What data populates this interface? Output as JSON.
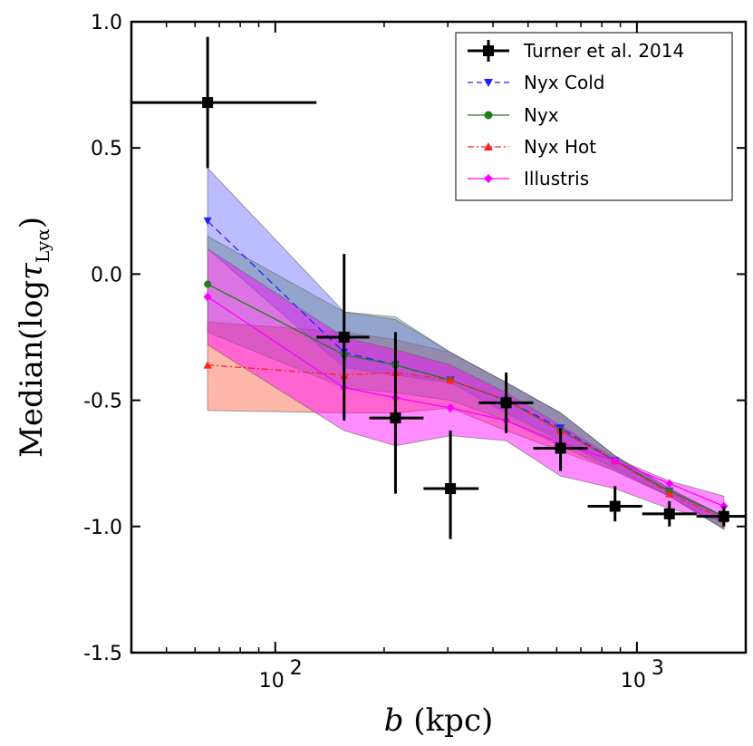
{
  "chart_data": {
    "type": "line",
    "xscale": "log",
    "xlim": [
      40,
      2000
    ],
    "ylim": [
      -1.5,
      1.0
    ],
    "xlabel": {
      "italic": "b",
      "rest": " (kpc)"
    },
    "ylabel": {
      "prefix": "Median(log",
      "tau": "τ",
      "sub": "Lyα",
      "suffix": ")"
    },
    "yticks": [
      {
        "value": 1.0,
        "label": "1.0"
      },
      {
        "value": 0.5,
        "label": "0.5"
      },
      {
        "value": 0.0,
        "label": "0.0"
      },
      {
        "value": -0.5,
        "label": "-0.5"
      },
      {
        "value": -1.0,
        "label": "-1.0"
      },
      {
        "value": -1.5,
        "label": "-1.5"
      }
    ],
    "xticks": [
      {
        "value": 100,
        "base": "10",
        "exp": "2"
      },
      {
        "value": 1000,
        "base": "10",
        "exp": "3"
      }
    ],
    "x": [
      65,
      155,
      215,
      305,
      435,
      615,
      870,
      1230,
      1740
    ],
    "bands": [
      {
        "name": "Nyx Hot band",
        "color": "#ff6040",
        "opacity": 0.45,
        "upper": [
          -0.19,
          -0.23,
          -0.26,
          -0.31,
          -0.43,
          -0.55,
          -0.72,
          -0.85,
          -0.96
        ],
        "lower": [
          -0.54,
          -0.55,
          -0.55,
          -0.53,
          -0.62,
          -0.7,
          -0.78,
          -0.88,
          -1.01
        ]
      },
      {
        "name": "Nyx Cold band",
        "color": "#6a6aff",
        "opacity": 0.45,
        "upper": [
          0.42,
          -0.15,
          -0.18,
          -0.31,
          -0.43,
          -0.55,
          -0.72,
          -0.85,
          -0.96
        ],
        "lower": [
          0.1,
          -0.37,
          -0.4,
          -0.43,
          -0.55,
          -0.66,
          -0.77,
          -0.88,
          -1.01
        ]
      },
      {
        "name": "Nyx band",
        "color": "#4a7a70",
        "opacity": 0.35,
        "upper": [
          0.15,
          -0.15,
          -0.17,
          -0.31,
          -0.43,
          -0.55,
          -0.72,
          -0.85,
          -0.96
        ],
        "lower": [
          -0.23,
          -0.45,
          -0.47,
          -0.5,
          -0.58,
          -0.68,
          -0.78,
          -0.88,
          -1.01
        ]
      },
      {
        "name": "Illustris band",
        "color": "#ff00ff",
        "opacity": 0.45,
        "upper": [
          0.1,
          -0.25,
          -0.3,
          -0.36,
          -0.47,
          -0.6,
          -0.73,
          -0.82,
          -0.88
        ],
        "lower": [
          -0.28,
          -0.62,
          -0.68,
          -0.64,
          -0.66,
          -0.8,
          -0.85,
          -0.93,
          -0.98
        ]
      }
    ],
    "series": [
      {
        "name": "Nyx Cold",
        "color": "#2020ff",
        "dash": "8,5",
        "marker": "triangle-down",
        "y": [
          0.21,
          -0.31,
          -0.36,
          -0.42,
          -0.5,
          -0.61,
          -0.74,
          -0.86,
          -0.96
        ]
      },
      {
        "name": "Nyx",
        "color": "#1e7d1e",
        "dash": "",
        "marker": "circle",
        "y": [
          -0.04,
          -0.32,
          -0.36,
          -0.42,
          -0.5,
          -0.62,
          -0.74,
          -0.86,
          -0.96
        ]
      },
      {
        "name": "Nyx Hot",
        "color": "#ff2020",
        "dash": "7,3,2,3",
        "marker": "triangle-up",
        "y": [
          -0.36,
          -0.4,
          -0.39,
          -0.42,
          -0.5,
          -0.62,
          -0.74,
          -0.87,
          -0.97
        ]
      },
      {
        "name": "Illustris",
        "color": "#ff00ff",
        "dash": "",
        "marker": "diamond",
        "y": [
          -0.09,
          -0.45,
          -0.49,
          -0.53,
          -0.58,
          -0.67,
          -0.74,
          -0.83,
          -0.92
        ]
      }
    ],
    "observations": {
      "name": "Turner et al. 2014",
      "color": "#000000",
      "points": [
        {
          "x": 65,
          "y": 0.68,
          "xlo": 40,
          "xhi": 130,
          "ylo": 0.42,
          "yhi": 0.94
        },
        {
          "x": 155,
          "y": -0.25,
          "xlo": 130,
          "xhi": 182,
          "ylo": -0.58,
          "yhi": 0.08
        },
        {
          "x": 215,
          "y": -0.57,
          "xlo": 182,
          "xhi": 257,
          "ylo": -0.87,
          "yhi": -0.23
        },
        {
          "x": 305,
          "y": -0.85,
          "xlo": 257,
          "xhi": 365,
          "ylo": -1.05,
          "yhi": -0.62
        },
        {
          "x": 435,
          "y": -0.51,
          "xlo": 365,
          "xhi": 517,
          "ylo": -0.63,
          "yhi": -0.39
        },
        {
          "x": 615,
          "y": -0.69,
          "xlo": 517,
          "xhi": 731,
          "ylo": -0.78,
          "yhi": -0.61
        },
        {
          "x": 870,
          "y": -0.92,
          "xlo": 731,
          "xhi": 1034,
          "ylo": -0.98,
          "yhi": -0.84
        },
        {
          "x": 1230,
          "y": -0.95,
          "xlo": 1034,
          "xhi": 1462,
          "ylo": -1.0,
          "yhi": -0.9
        },
        {
          "x": 1740,
          "y": -0.96,
          "xlo": 1462,
          "xhi": 2000,
          "ylo": -1.0,
          "yhi": -0.92
        }
      ]
    },
    "legend": {
      "position": "top-right",
      "entries": [
        "Turner et al. 2014",
        "Nyx Cold",
        "Nyx",
        "Nyx Hot",
        "Illustris"
      ]
    }
  }
}
